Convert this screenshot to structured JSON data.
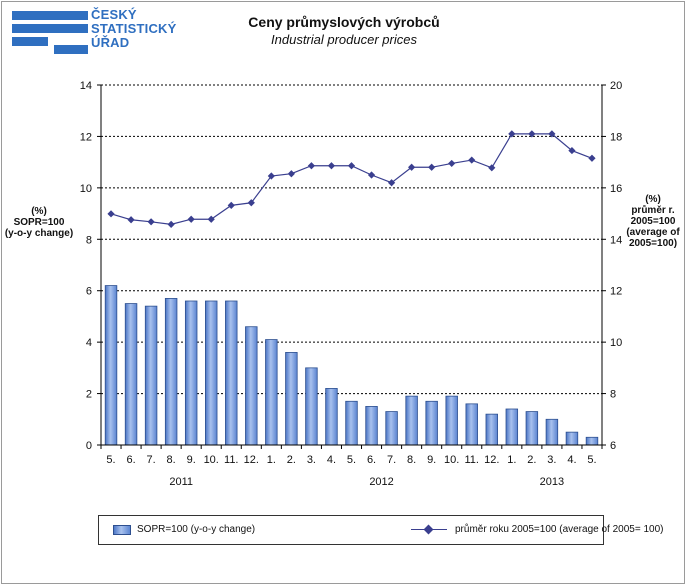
{
  "logo": {
    "lines": [
      "ČESKÝ",
      "STATISTICKÝ",
      "ÚŘAD"
    ]
  },
  "header": {
    "title_cz": "Ceny průmyslových výrobců",
    "title_en": "Industrial producer prices"
  },
  "colors": {
    "bars": "#6b8fd6",
    "line": "#3a3f8f",
    "grid": "#000000",
    "logo": "#2f6fc0"
  },
  "chart_data": {
    "type": "bar",
    "title": "Ceny průmyslových výrobců",
    "subtitle": "Industrial producer prices",
    "categories": [
      "5.",
      "6.",
      "7.",
      "8.",
      "9.",
      "10.",
      "11.",
      "12.",
      "1.",
      "2.",
      "3.",
      "4.",
      "5.",
      "6.",
      "7.",
      "8.",
      "9.",
      "10.",
      "11.",
      "12.",
      "1.",
      "2.",
      "3.",
      "4.",
      "5."
    ],
    "year_groups": [
      {
        "label": "2011",
        "from": 0,
        "to": 7
      },
      {
        "label": "2012",
        "from": 8,
        "to": 19
      },
      {
        "label": "2013",
        "from": 20,
        "to": 24
      }
    ],
    "series": [
      {
        "name": "SOPR=100 (y-o-y change)",
        "type": "bar",
        "axis": "left",
        "values": [
          6.2,
          5.5,
          5.4,
          5.7,
          5.6,
          5.6,
          5.6,
          4.6,
          4.1,
          3.6,
          3.0,
          2.2,
          1.7,
          1.5,
          1.3,
          1.9,
          1.7,
          1.9,
          1.6,
          1.2,
          1.4,
          1.3,
          1.0,
          0.5,
          0.3
        ]
      },
      {
        "name": "průměr roku 2005=100 (average of 2005= 100)",
        "type": "line",
        "axis": "right",
        "values": [
          14.99,
          14.76,
          14.68,
          14.58,
          14.78,
          14.78,
          15.32,
          15.42,
          16.46,
          16.55,
          16.86,
          16.86,
          16.86,
          16.5,
          16.2,
          16.8,
          16.8,
          16.95,
          17.08,
          16.78,
          18.1,
          18.1,
          18.1,
          17.45,
          17.15
        ]
      }
    ],
    "left_axis": {
      "label_lines": [
        "(%)",
        "SOPR=100",
        "(y-o-y change)"
      ],
      "ylim": [
        0,
        14
      ],
      "ticks": [
        0,
        2,
        4,
        6,
        8,
        10,
        12,
        14
      ]
    },
    "right_axis": {
      "label_lines": [
        "(%)",
        "průměr r.",
        "2005=100",
        "(average of",
        "2005=100)"
      ],
      "ylim": [
        6,
        20
      ],
      "ticks": [
        6,
        8,
        10,
        12,
        14,
        16,
        18,
        20
      ]
    },
    "grid": true,
    "legend_position": "bottom"
  }
}
